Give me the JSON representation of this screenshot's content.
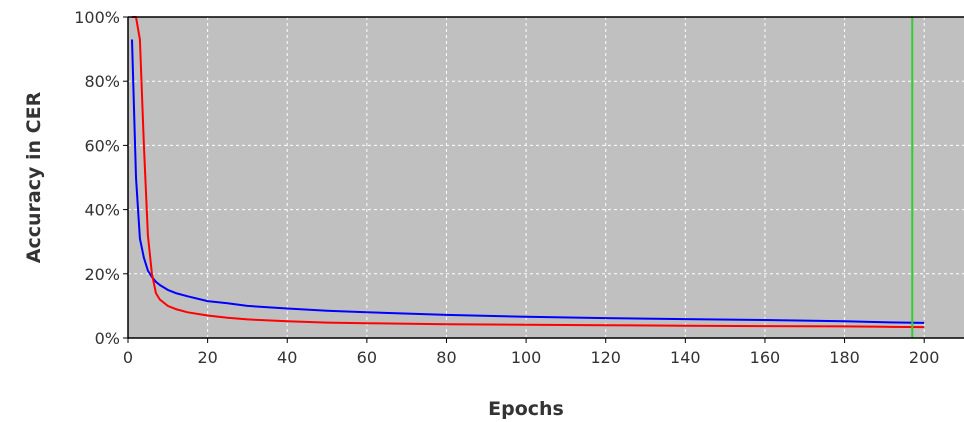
{
  "chart_data": {
    "type": "line",
    "title": "",
    "xlabel": "Epochs",
    "ylabel": "Accuracy in CER",
    "xlim": [
      0,
      210
    ],
    "ylim": [
      0,
      100
    ],
    "x_ticks": [
      0,
      20,
      40,
      60,
      80,
      100,
      120,
      140,
      160,
      180,
      200
    ],
    "y_ticks": [
      0,
      20,
      40,
      60,
      80,
      100
    ],
    "y_tick_labels": [
      "0%",
      "20%",
      "40%",
      "60%",
      "80%",
      "100%"
    ],
    "grid": true,
    "plot_background": "#c0c0c0",
    "series": [
      {
        "color": "#0000ff",
        "x": [
          1,
          2,
          3,
          4,
          5,
          6,
          7,
          8,
          10,
          12,
          15,
          20,
          25,
          30,
          40,
          50,
          60,
          80,
          100,
          120,
          140,
          160,
          180,
          190,
          200
        ],
        "y": [
          93,
          50,
          31,
          25,
          21,
          19,
          17.5,
          16.5,
          15,
          14,
          13,
          11.5,
          10.8,
          10,
          9.2,
          8.5,
          8,
          7.2,
          6.6,
          6.2,
          5.9,
          5.6,
          5.2,
          4.9,
          4.7
        ]
      },
      {
        "color": "#ff0000",
        "x": [
          1,
          2,
          3,
          4,
          5,
          6,
          7,
          8,
          10,
          12,
          15,
          20,
          25,
          30,
          40,
          50,
          60,
          80,
          100,
          120,
          140,
          160,
          180,
          190,
          200
        ],
        "y": [
          100,
          100,
          93,
          60,
          32,
          20,
          14,
          12,
          10,
          9,
          8,
          7,
          6.3,
          5.8,
          5.2,
          4.8,
          4.6,
          4.3,
          4.1,
          4.0,
          3.8,
          3.7,
          3.6,
          3.5,
          3.4
        ]
      }
    ],
    "markers": [
      {
        "type": "vertical-line",
        "x": 197,
        "color": "#33cc33"
      }
    ]
  }
}
